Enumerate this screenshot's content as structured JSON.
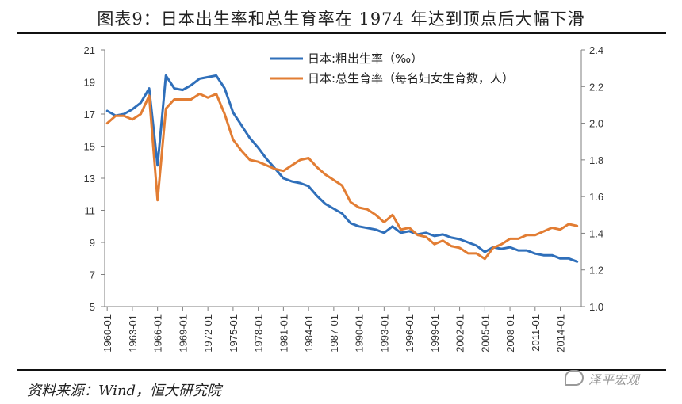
{
  "figure": {
    "title": "图表9：日本出生率和总生育率在 1974 年达到顶点后大幅下滑",
    "source": "资料来源：Wind，恒大研究院",
    "watermark": "泽平宏观"
  },
  "colors": {
    "blue": "#2f6fba",
    "orange": "#e27d33",
    "axis": "#7f7f7f"
  },
  "chart_data": {
    "type": "line",
    "x": [
      1960,
      1961,
      1962,
      1963,
      1964,
      1965,
      1966,
      1967,
      1968,
      1969,
      1970,
      1971,
      1972,
      1973,
      1974,
      1975,
      1976,
      1977,
      1978,
      1979,
      1980,
      1981,
      1982,
      1983,
      1984,
      1985,
      1986,
      1987,
      1988,
      1989,
      1990,
      1991,
      1992,
      1993,
      1994,
      1995,
      1996,
      1997,
      1998,
      1999,
      2000,
      2001,
      2002,
      2003,
      2004,
      2005,
      2006,
      2007,
      2008,
      2009,
      2010,
      2011,
      2012,
      2013,
      2014,
      2015,
      2016
    ],
    "x_tick_labels": [
      "1960-01",
      "1963-01",
      "1966-01",
      "1969-01",
      "1972-01",
      "1975-01",
      "1978-01",
      "1981-01",
      "1984-01",
      "1987-01",
      "1990-01",
      "1993-01",
      "1996-01",
      "1999-01",
      "2002-01",
      "2005-01",
      "2008-01",
      "2011-01",
      "2014-01"
    ],
    "x_tick_years": [
      1960,
      1963,
      1966,
      1969,
      1972,
      1975,
      1978,
      1981,
      1984,
      1987,
      1990,
      1993,
      1996,
      1999,
      2002,
      2005,
      2008,
      2011,
      2014
    ],
    "xlim": [
      1959.7,
      2016.5
    ],
    "y_left": {
      "ylim": [
        5,
        21
      ],
      "ticks": [
        5,
        7,
        9,
        11,
        13,
        15,
        17,
        19,
        21
      ]
    },
    "y_right": {
      "ylim": [
        1.0,
        2.4
      ],
      "ticks": [
        "1.0",
        "1.2",
        "1.4",
        "1.6",
        "1.8",
        "2.0",
        "2.2",
        "2.4"
      ]
    },
    "series": [
      {
        "name": "日本:粗出生率（‰）",
        "axis": "left",
        "color": "#2f6fba",
        "values": [
          17.2,
          16.9,
          17.0,
          17.3,
          17.7,
          18.6,
          13.8,
          19.4,
          18.6,
          18.5,
          18.8,
          19.2,
          19.3,
          19.4,
          18.6,
          17.1,
          16.3,
          15.5,
          14.9,
          14.2,
          13.6,
          13.0,
          12.8,
          12.7,
          12.5,
          11.9,
          11.4,
          11.1,
          10.8,
          10.2,
          10.0,
          9.9,
          9.8,
          9.6,
          10.0,
          9.6,
          9.7,
          9.5,
          9.6,
          9.4,
          9.5,
          9.3,
          9.2,
          9.0,
          8.8,
          8.4,
          8.7,
          8.6,
          8.7,
          8.5,
          8.5,
          8.3,
          8.2,
          8.2,
          8.0,
          8.0,
          7.8
        ]
      },
      {
        "name": "日本:总生育率（每名妇女生育数，人）",
        "axis": "right",
        "color": "#e27d33",
        "values": [
          2.0,
          2.04,
          2.04,
          2.02,
          2.05,
          2.15,
          1.58,
          2.08,
          2.13,
          2.13,
          2.13,
          2.16,
          2.14,
          2.16,
          2.05,
          1.91,
          1.85,
          1.8,
          1.79,
          1.77,
          1.75,
          1.74,
          1.77,
          1.8,
          1.81,
          1.76,
          1.72,
          1.69,
          1.66,
          1.57,
          1.54,
          1.53,
          1.5,
          1.46,
          1.5,
          1.42,
          1.43,
          1.39,
          1.38,
          1.34,
          1.36,
          1.33,
          1.32,
          1.29,
          1.29,
          1.26,
          1.32,
          1.34,
          1.37,
          1.37,
          1.39,
          1.39,
          1.41,
          1.43,
          1.42,
          1.45,
          1.44
        ]
      }
    ],
    "title": "",
    "xlabel": "",
    "ylabel": "",
    "legend_position": "top-center",
    "grid": false
  }
}
